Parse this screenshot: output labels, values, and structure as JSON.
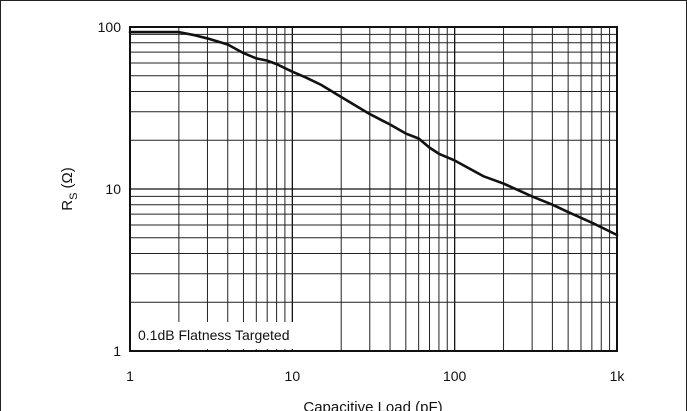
{
  "chart_data": {
    "type": "line",
    "x_scale": "log",
    "y_scale": "log",
    "xlim": [
      1,
      1000
    ],
    "ylim": [
      1,
      100
    ],
    "xlabel": "Capacitive Load (pF)",
    "ylabel_main": "R",
    "ylabel_sub": "S",
    "ylabel_unit": "(Ω)",
    "x_ticks": [
      {
        "value": 1,
        "label": "1"
      },
      {
        "value": 10,
        "label": "10"
      },
      {
        "value": 100,
        "label": "100"
      },
      {
        "value": 1000,
        "label": "1k"
      }
    ],
    "y_ticks": [
      {
        "value": 1,
        "label": "1"
      },
      {
        "value": 10,
        "label": "10"
      },
      {
        "value": 100,
        "label": "100"
      }
    ],
    "grid": true,
    "annotation": "0.1dB Flatness Targeted",
    "annotation_position": "bottom-left",
    "series": [
      {
        "color": "#111111",
        "x": [
          1,
          1.5,
          2,
          2.5,
          3,
          4,
          5,
          6,
          7,
          8,
          10,
          12,
          15,
          20,
          30,
          40,
          50,
          60,
          70,
          80,
          100,
          150,
          200,
          300,
          400,
          500,
          700,
          1000
        ],
        "y": [
          93,
          93,
          93,
          89,
          85,
          78,
          69,
          64,
          62,
          59,
          53,
          49,
          44,
          37,
          29,
          25,
          22,
          20.5,
          18,
          16.5,
          15,
          12,
          10.8,
          9,
          8,
          7.2,
          6.2,
          5.2
        ]
      }
    ]
  }
}
